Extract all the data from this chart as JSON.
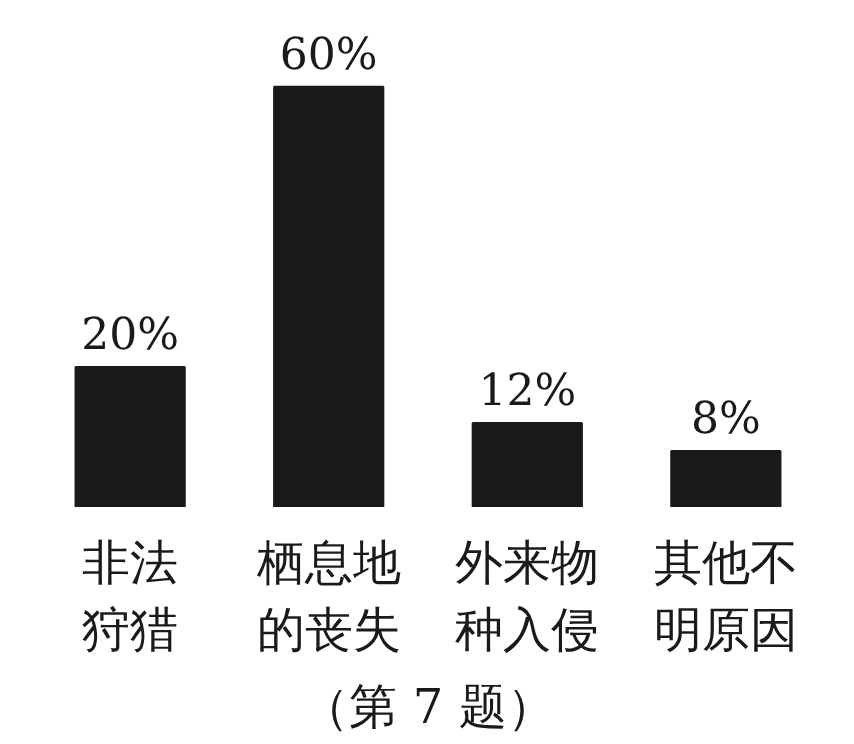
{
  "chart_data": {
    "type": "bar",
    "categories": [
      "非法狩猎",
      "栖息地的丧失",
      "外来物种入侵",
      "其他不明原因"
    ],
    "values": [
      20,
      60,
      12,
      8
    ],
    "value_labels": [
      "20%",
      "60%",
      "12%",
      "8%"
    ],
    "color": "#1a1a1a",
    "annotations": [
      "（第 7 题）"
    ]
  }
}
